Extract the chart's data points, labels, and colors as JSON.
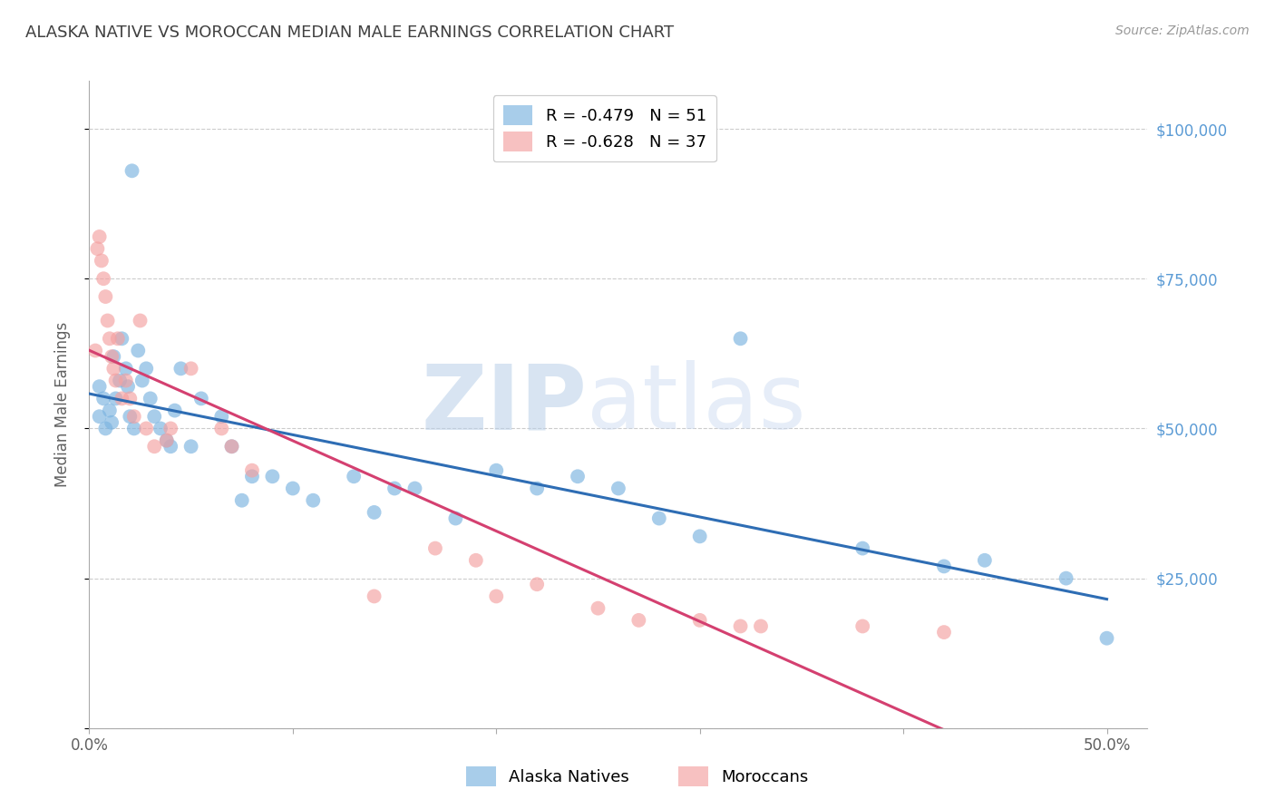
{
  "title": "ALASKA NATIVE VS MOROCCAN MEDIAN MALE EARNINGS CORRELATION CHART",
  "source": "Source: ZipAtlas.com",
  "ylabel": "Median Male Earnings",
  "watermark_zip": "ZIP",
  "watermark_atlas": "atlas",
  "legend_alaska": "R = -0.479   N = 51",
  "legend_moroccan": "R = -0.628   N = 37",
  "legend_alaska_bottom": "Alaska Natives",
  "legend_moroccan_bottom": "Moroccans",
  "yticks": [
    0,
    25000,
    50000,
    75000,
    100000
  ],
  "ytick_labels": [
    "",
    "$25,000",
    "$50,000",
    "$75,000",
    "$100,000"
  ],
  "xticks": [
    0.0,
    0.1,
    0.2,
    0.3,
    0.4,
    0.5
  ],
  "xtick_labels": [
    "0.0%",
    "",
    "",
    "",
    "",
    "50.0%"
  ],
  "xlim": [
    0.0,
    0.52
  ],
  "ylim": [
    0,
    108000
  ],
  "alaska_x": [
    0.021,
    0.005,
    0.005,
    0.007,
    0.008,
    0.01,
    0.011,
    0.012,
    0.013,
    0.015,
    0.016,
    0.018,
    0.019,
    0.02,
    0.022,
    0.024,
    0.026,
    0.028,
    0.03,
    0.032,
    0.035,
    0.038,
    0.04,
    0.042,
    0.045,
    0.05,
    0.055,
    0.065,
    0.07,
    0.075,
    0.08,
    0.09,
    0.1,
    0.11,
    0.13,
    0.14,
    0.15,
    0.16,
    0.18,
    0.2,
    0.22,
    0.24,
    0.26,
    0.28,
    0.3,
    0.32,
    0.38,
    0.42,
    0.44,
    0.48,
    0.5
  ],
  "alaska_y": [
    93000,
    57000,
    52000,
    55000,
    50000,
    53000,
    51000,
    62000,
    55000,
    58000,
    65000,
    60000,
    57000,
    52000,
    50000,
    63000,
    58000,
    60000,
    55000,
    52000,
    50000,
    48000,
    47000,
    53000,
    60000,
    47000,
    55000,
    52000,
    47000,
    38000,
    42000,
    42000,
    40000,
    38000,
    42000,
    36000,
    40000,
    40000,
    35000,
    43000,
    40000,
    42000,
    40000,
    35000,
    32000,
    65000,
    30000,
    27000,
    28000,
    25000,
    15000
  ],
  "moroccan_x": [
    0.003,
    0.004,
    0.005,
    0.006,
    0.007,
    0.008,
    0.009,
    0.01,
    0.011,
    0.012,
    0.013,
    0.014,
    0.016,
    0.018,
    0.02,
    0.022,
    0.025,
    0.028,
    0.032,
    0.038,
    0.04,
    0.05,
    0.065,
    0.07,
    0.08,
    0.14,
    0.17,
    0.19,
    0.2,
    0.22,
    0.25,
    0.27,
    0.3,
    0.32,
    0.33,
    0.38,
    0.42
  ],
  "moroccan_y": [
    63000,
    80000,
    82000,
    78000,
    75000,
    72000,
    68000,
    65000,
    62000,
    60000,
    58000,
    65000,
    55000,
    58000,
    55000,
    52000,
    68000,
    50000,
    47000,
    48000,
    50000,
    60000,
    50000,
    47000,
    43000,
    22000,
    30000,
    28000,
    22000,
    24000,
    20000,
    18000,
    18000,
    17000,
    17000,
    17000,
    16000
  ],
  "alaska_color": "#7ab3e0",
  "moroccan_color": "#f4a0a0",
  "alaska_line_color": "#2e6db4",
  "moroccan_line_color": "#d44070",
  "background_color": "#ffffff",
  "grid_color": "#cccccc",
  "title_color": "#404040",
  "source_color": "#999999",
  "ylabel_color": "#606060",
  "ytick_color": "#5b9bd5"
}
